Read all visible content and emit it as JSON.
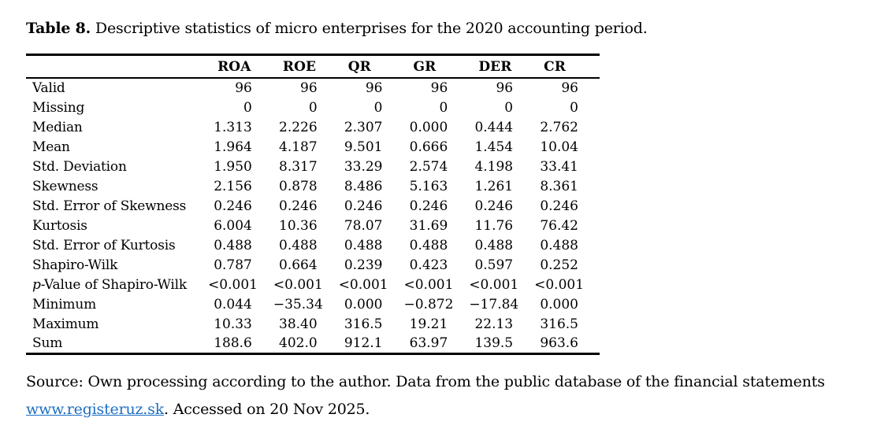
{
  "title": {
    "label": "Table 8.",
    "text": "Descriptive statistics of micro enterprises for the 2020 accounting period."
  },
  "table": {
    "columns": [
      "ROA",
      "ROE",
      "QR",
      "GR",
      "DER",
      "CR"
    ],
    "rows": [
      {
        "label": "Valid",
        "values": [
          "96",
          "96",
          "96",
          "96",
          "96",
          "96"
        ]
      },
      {
        "label": "Missing",
        "values": [
          "0",
          "0",
          "0",
          "0",
          "0",
          "0"
        ]
      },
      {
        "label": "Median",
        "values": [
          "1.313",
          "2.226",
          "2.307",
          "0.000",
          "0.444",
          "2.762"
        ]
      },
      {
        "label": "Mean",
        "values": [
          "1.964",
          "4.187",
          "9.501",
          "0.666",
          "1.454",
          "10.04"
        ]
      },
      {
        "label": "Std. Deviation",
        "values": [
          "1.950",
          "8.317",
          "33.29",
          "2.574",
          "4.198",
          "33.41"
        ]
      },
      {
        "label": "Skewness",
        "values": [
          "2.156",
          "0.878",
          "8.486",
          "5.163",
          "1.261",
          "8.361"
        ]
      },
      {
        "label": "Std. Error of Skewness",
        "values": [
          "0.246",
          "0.246",
          "0.246",
          "0.246",
          "0.246",
          "0.246"
        ]
      },
      {
        "label": "Kurtosis",
        "values": [
          "6.004",
          "10.36",
          "78.07",
          "31.69",
          "11.76",
          "76.42"
        ]
      },
      {
        "label": "Std. Error of Kurtosis",
        "values": [
          "0.488",
          "0.488",
          "0.488",
          "0.488",
          "0.488",
          "0.488"
        ]
      },
      {
        "label": "Shapiro-Wilk",
        "values": [
          "0.787",
          "0.664",
          "0.239",
          "0.423",
          "0.597",
          "0.252"
        ]
      },
      {
        "label": "p-Value of Shapiro-Wilk",
        "italic_first_char": true,
        "values": [
          "<0.001",
          "<0.001",
          "<0.001",
          "<0.001",
          "<0.001",
          "<0.001"
        ]
      },
      {
        "label": "Minimum",
        "values": [
          "0.044",
          "−35.34",
          "0.000",
          "−0.872",
          "−17.84",
          "0.000"
        ]
      },
      {
        "label": "Maximum",
        "values": [
          "10.33",
          "38.40",
          "316.5",
          "19.21",
          "22.13",
          "316.5"
        ]
      },
      {
        "label": "Sum",
        "values": [
          "188.6",
          "402.0",
          "912.1",
          "63.97",
          "139.5",
          "963.6"
        ]
      }
    ]
  },
  "footer": {
    "line1": "Source: Own processing according to the author. Data from the public database of the financial statements",
    "link": "www.registeruz.sk",
    "after_link": ". Accessed on 20 Nov 2025.",
    "link_color": "#1d6fc2"
  }
}
